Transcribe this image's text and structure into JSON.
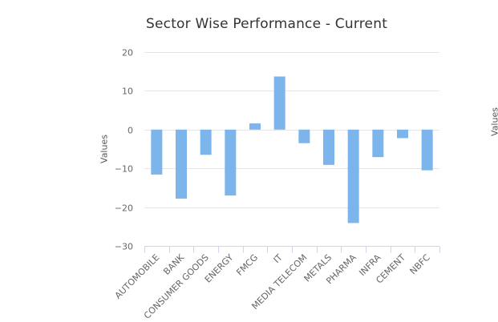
{
  "chart_data": {
    "type": "bar",
    "title": "Sector Wise Performance - Current",
    "ylabel": "Values",
    "ylabel_secondary": "Values",
    "ylim": [
      -30,
      20
    ],
    "yticks": [
      20,
      10,
      0,
      -10,
      -20,
      -30
    ],
    "grid": true,
    "categories": [
      "AUTOMOBILE",
      "BANK",
      "CONSUMER GOODS",
      "ENERGY",
      "FMCG",
      "IT",
      "MEDIA TELECOM",
      "METALS",
      "PHARMA",
      "INFRA",
      "CEMENT",
      "NBFC"
    ],
    "values": [
      -11.6,
      -17.8,
      -6.5,
      -17.0,
      1.6,
      13.7,
      -3.5,
      -9.1,
      -24.1,
      -7.1,
      -2.2,
      -10.5
    ],
    "bar_color": "#7cb5ec"
  }
}
